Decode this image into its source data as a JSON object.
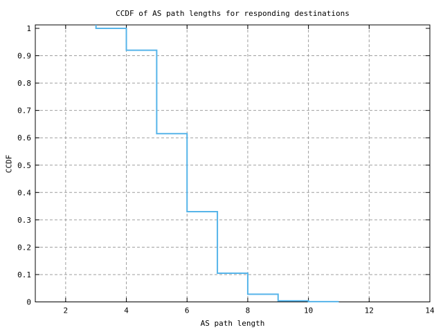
{
  "chart_data": {
    "type": "line",
    "step_mode": "post",
    "title": "CCDF of AS path lengths for responding destinations",
    "xlabel": "AS path length",
    "ylabel": "CCDF",
    "xlim": [
      1,
      14
    ],
    "ylim": [
      0,
      1
    ],
    "x_ticks": [
      {
        "value": 2,
        "label": "2"
      },
      {
        "value": 4,
        "label": "4"
      },
      {
        "value": 6,
        "label": "6"
      },
      {
        "value": 8,
        "label": "8"
      },
      {
        "value": 10,
        "label": "10"
      },
      {
        "value": 12,
        "label": "12"
      },
      {
        "value": 14,
        "label": "14"
      }
    ],
    "y_ticks": [
      {
        "value": 0,
        "label": "0"
      },
      {
        "value": 0.1,
        "label": "0.1"
      },
      {
        "value": 0.2,
        "label": "0.2"
      },
      {
        "value": 0.3,
        "label": "0.3"
      },
      {
        "value": 0.4,
        "label": "0.4"
      },
      {
        "value": 0.5,
        "label": "0.5"
      },
      {
        "value": 0.6,
        "label": "0.6"
      },
      {
        "value": 0.7,
        "label": "0.7"
      },
      {
        "value": 0.8,
        "label": "0.8"
      },
      {
        "value": 0.9,
        "label": "0.9"
      },
      {
        "value": 1,
        "label": "1"
      }
    ],
    "grid": {
      "show": true,
      "color": "#9e9e9e",
      "dash": "4 3"
    },
    "axis_color": "#000000",
    "background": "#ffffff",
    "legend": "none",
    "series": [
      {
        "name": "CCDF",
        "color": "#56b4e9",
        "line_width": 2,
        "points": [
          [
            3,
            1.0
          ],
          [
            4,
            0.92
          ],
          [
            5,
            0.615
          ],
          [
            6,
            0.33
          ],
          [
            7,
            0.105
          ],
          [
            8,
            0.028
          ],
          [
            9,
            0.004
          ],
          [
            10,
            0.001
          ],
          [
            11,
            0.001
          ]
        ]
      }
    ]
  }
}
